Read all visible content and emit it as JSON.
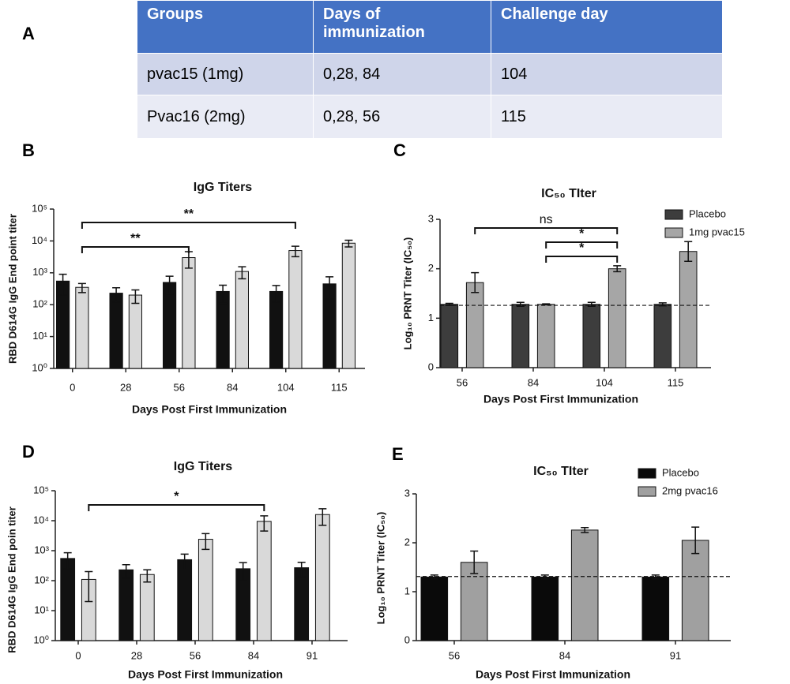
{
  "panel_labels": [
    "A",
    "B",
    "C",
    "D",
    "E"
  ],
  "table": {
    "headers": [
      "Groups",
      "Days of immunization",
      "Challenge day"
    ],
    "rows": [
      [
        "pvac15 (1mg)",
        "0,28, 84",
        "104"
      ],
      [
        "Pvac16 (2mg)",
        "0,28, 56",
        "115"
      ]
    ]
  },
  "chart_data": [
    {
      "type": "bar",
      "title": "IgG Titers",
      "x_label": "Days Post First Immunization",
      "y_label": "RBD D614G IgG End point titer",
      "categories": [
        "0",
        "28",
        "56",
        "84",
        "104",
        "115"
      ],
      "log_y": true,
      "series": [
        {
          "color": "#111111",
          "values": [
            550,
            230,
            500,
            260,
            260,
            450
          ],
          "errors": [
            350,
            110,
            280,
            150,
            140,
            300
          ]
        },
        {
          "color": "#d9d9d9",
          "values": [
            350,
            200,
            3000,
            1100,
            5000,
            8500
          ],
          "errors": [
            110,
            90,
            1600,
            450,
            1800,
            2000
          ]
        }
      ],
      "ylim": [
        1,
        100000
      ],
      "yticks": [
        {
          "value": 1,
          "label": "10⁰"
        },
        {
          "value": 10,
          "label": "10¹"
        },
        {
          "value": 100,
          "label": "10²"
        },
        {
          "value": 1000,
          "label": "10³"
        },
        {
          "value": 10000,
          "label": "10⁴"
        },
        {
          "value": 100000,
          "label": "10⁵"
        }
      ],
      "brackets": [
        {
          "label": "**",
          "from": "0",
          "to": "104"
        },
        {
          "label": "**",
          "from": "0",
          "to": "56"
        }
      ]
    },
    {
      "type": "bar",
      "title": "IC₅₀ TIter",
      "x_label": "Days Post First Immunization",
      "y_label": "Log₁₀ PRNT Titer (IC₅₀)",
      "categories": [
        "56",
        "84",
        "104",
        "115"
      ],
      "legend": "upper right",
      "series": [
        {
          "name": "Placebo",
          "color": "#3d3d3d",
          "values": [
            1.28,
            1.28,
            1.28,
            1.28
          ],
          "errors": [
            0.02,
            0.04,
            0.04,
            0.03
          ]
        },
        {
          "name": "1mg pvac15",
          "color": "#a6a6a6",
          "values": [
            1.72,
            1.28,
            2.0,
            2.35
          ],
          "errors": [
            0.2,
            0.01,
            0.06,
            0.2
          ]
        }
      ],
      "ylim": [
        0,
        3
      ],
      "yticks": [
        0,
        1,
        2,
        3
      ],
      "reference_line": 1.26,
      "brackets": [
        {
          "label": "ns",
          "from": "56",
          "to": "104"
        },
        {
          "label": "*",
          "from": "84",
          "to": "104"
        },
        {
          "label": "*",
          "from": "84",
          "to": "104"
        }
      ]
    },
    {
      "type": "bar",
      "title": "IgG Titers",
      "x_label": "Days Post First Immunization",
      "y_label": "RBD D614G IgG End poin titer",
      "categories": [
        "0",
        "28",
        "56",
        "84",
        "91"
      ],
      "log_y": true,
      "series": [
        {
          "color": "#111111",
          "values": [
            550,
            230,
            500,
            250,
            270
          ],
          "errors": [
            300,
            110,
            270,
            150,
            140
          ]
        },
        {
          "color": "#d9d9d9",
          "values": [
            110,
            160,
            2400,
            9500,
            16000
          ],
          "errors": [
            90,
            70,
            1300,
            5000,
            9000
          ]
        }
      ],
      "ylim": [
        1,
        100000
      ],
      "yticks": [
        {
          "value": 1,
          "label": "10⁰"
        },
        {
          "value": 10,
          "label": "10¹"
        },
        {
          "value": 100,
          "label": "10²"
        },
        {
          "value": 1000,
          "label": "10³"
        },
        {
          "value": 10000,
          "label": "10⁴"
        },
        {
          "value": 100000,
          "label": "10⁵"
        }
      ],
      "brackets": [
        {
          "label": "*",
          "from": "0",
          "to": "84"
        }
      ]
    },
    {
      "type": "bar",
      "title": "IC₅₀ TIter",
      "x_label": "Days Post First Immunization",
      "y_label": "Log₁₀ PRNT Titer (IC₅₀)",
      "categories": [
        "56",
        "84",
        "91"
      ],
      "legend": "upper right",
      "series": [
        {
          "name": "Placebo",
          "color": "#0a0a0a",
          "values": [
            1.3,
            1.3,
            1.3
          ],
          "errors": [
            0.04,
            0.04,
            0.04
          ]
        },
        {
          "name": "2mg pvac16",
          "color": "#a0a0a0",
          "values": [
            1.6,
            2.26,
            2.05
          ],
          "errors": [
            0.23,
            0.05,
            0.27
          ]
        }
      ],
      "ylim": [
        0,
        3
      ],
      "yticks": [
        0,
        1,
        2,
        3
      ],
      "reference_line": 1.31
    }
  ]
}
